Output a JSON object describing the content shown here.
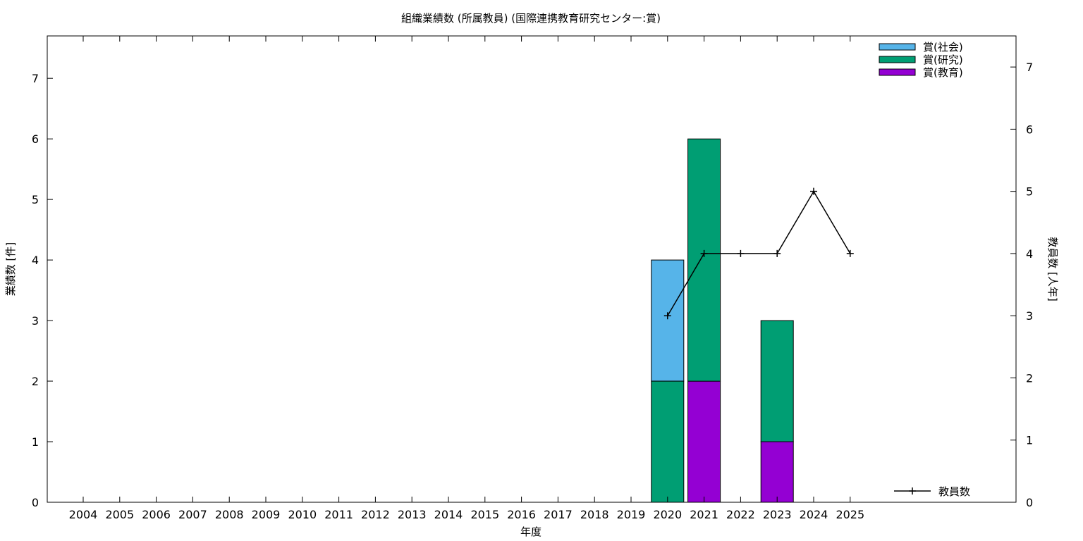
{
  "chart_data": {
    "type": "bar",
    "stacked": true,
    "title": "組織業績数 (所属教員) (国際連携教育研究センター:賞)",
    "xlabel": "年度",
    "ylabel": "業績数 [件]",
    "y2label": "教員数 [人年]",
    "categories": [
      "2004",
      "2005",
      "2006",
      "2007",
      "2008",
      "2009",
      "2010",
      "2011",
      "2012",
      "2013",
      "2014",
      "2015",
      "2016",
      "2017",
      "2018",
      "2019",
      "2020",
      "2021",
      "2022",
      "2023",
      "2024",
      "2025"
    ],
    "ylim": [
      0,
      7.7
    ],
    "y2lim": [
      0,
      7.5
    ],
    "yticks": [
      0,
      1,
      2,
      3,
      4,
      5,
      6,
      7
    ],
    "y2ticks": [
      0,
      1,
      2,
      3,
      4,
      5,
      6,
      7
    ],
    "grid": false,
    "legend_position": "top-right",
    "series": [
      {
        "name": "賞(教育)",
        "color": "#9400d3",
        "values": [
          0,
          0,
          0,
          0,
          0,
          0,
          0,
          0,
          0,
          0,
          0,
          0,
          0,
          0,
          0,
          0,
          0,
          2,
          0,
          1,
          0,
          0
        ]
      },
      {
        "name": "賞(研究)",
        "color": "#009e73",
        "values": [
          0,
          0,
          0,
          0,
          0,
          0,
          0,
          0,
          0,
          0,
          0,
          0,
          0,
          0,
          0,
          0,
          2,
          4,
          0,
          2,
          0,
          0
        ]
      },
      {
        "name": "賞(社会)",
        "color": "#56b4e9",
        "values": [
          0,
          0,
          0,
          0,
          0,
          0,
          0,
          0,
          0,
          0,
          0,
          0,
          0,
          0,
          0,
          0,
          2,
          0,
          0,
          0,
          0,
          0
        ]
      }
    ],
    "legend_order": [
      "賞(社会)",
      "賞(研究)",
      "賞(教育)"
    ],
    "line_series": {
      "name": "教員数",
      "axis": "y2",
      "color": "#000000",
      "x": [
        "2020",
        "2021",
        "2022",
        "2023",
        "2024",
        "2025"
      ],
      "values": [
        3,
        4,
        4,
        4,
        5,
        4
      ]
    }
  }
}
